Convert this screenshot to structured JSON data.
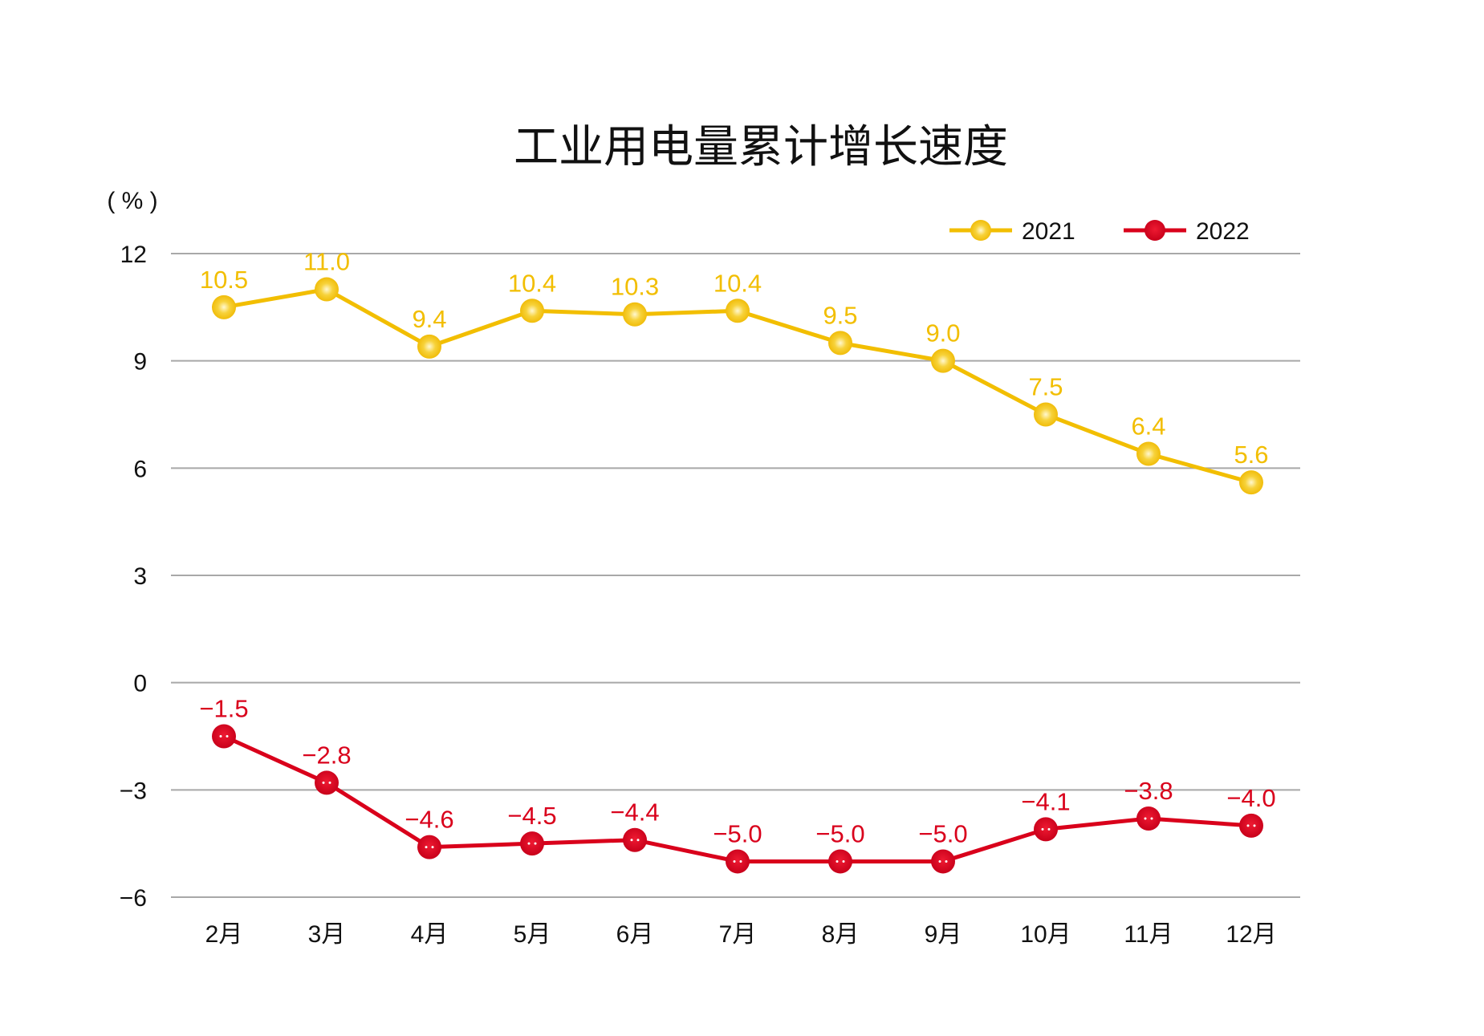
{
  "chart_data": {
    "type": "line",
    "title": "工业用电量累计增长速度",
    "ylabel": "( % )",
    "xlabel": "",
    "categories": [
      "2月",
      "3月",
      "4月",
      "5月",
      "6月",
      "7月",
      "8月",
      "9月",
      "10月",
      "11月",
      "12月"
    ],
    "ylim": [
      -6,
      12
    ],
    "yticks": [
      12,
      9,
      6,
      3,
      0,
      -3,
      -6
    ],
    "ytick_labels": [
      "12",
      "9",
      "6",
      "3",
      "0",
      "−3",
      "−6"
    ],
    "grid": true,
    "legend_position": "top-right",
    "series": [
      {
        "name": "2021",
        "color": "#F2BE00",
        "values": [
          10.5,
          11.0,
          9.4,
          10.4,
          10.3,
          10.4,
          9.5,
          9.0,
          7.5,
          6.4,
          5.6
        ],
        "labels": [
          "10.5",
          "11.0",
          "9.4",
          "10.4",
          "10.3",
          "10.4",
          "9.5",
          "9.0",
          "7.5",
          "6.4",
          "5.6"
        ]
      },
      {
        "name": "2022",
        "color": "#D9001B",
        "values": [
          -1.5,
          -2.8,
          -4.6,
          -4.5,
          -4.4,
          -5.0,
          -5.0,
          -5.0,
          -4.1,
          -3.8,
          -4.0
        ],
        "labels": [
          "−1.5",
          "−2.8",
          "−4.6",
          "−4.5",
          "−4.4",
          "−5.0",
          "−5.0",
          "−5.0",
          "−4.1",
          "−3.8",
          "−4.0"
        ]
      }
    ]
  }
}
